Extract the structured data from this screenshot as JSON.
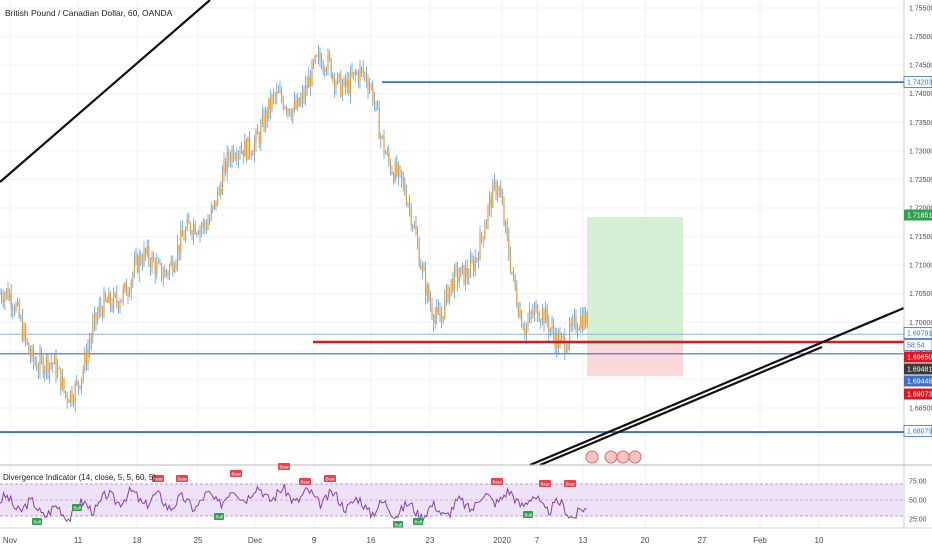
{
  "header": {
    "symbol_title": "British Pound / Canadian Dollar, 60, OANDA",
    "indicator_title": "Divergence Indicator (14, close, 5, 5, 60, 5)"
  },
  "colors": {
    "candle": "#e0a040",
    "wick": "#4f8fd8",
    "level_blue": "#3a70c8",
    "support_red": "#e0151f",
    "trend_black": "#111111",
    "target_green": "#cdeccd",
    "stop_red": "#fbd2d2",
    "rsi_line": "#8a3fb0",
    "rsi_band": "#eee3f6",
    "bear_tag": "#e8424a",
    "bull_tag": "#2e9e4f"
  },
  "chart_data": [
    {
      "type": "line",
      "title": "British Pound / Canadian Dollar, 60, OANDA",
      "ylim": [
        1.6832,
        1.7565
      ],
      "y_ticks": [
        "1.75500",
        "1.75000",
        "1.74500",
        "1.74000",
        "1.73500",
        "1.73000",
        "1.72500",
        "1.72000",
        "1.71500",
        "1.71000",
        "1.70500",
        "1.70000",
        "1.69500",
        "1.69000",
        "1.68500"
      ],
      "x_ticks": [
        "Nov",
        "11",
        "18",
        "25",
        "Dec",
        "9",
        "16",
        "23",
        "2020",
        "7",
        "13",
        "20",
        "27",
        "Feb",
        "10"
      ],
      "series": [
        {
          "x": [
            "Nov",
            "11",
            "18",
            "25",
            "Dec",
            "9",
            "16",
            "23",
            "2020",
            "7",
            "13"
          ],
          "values": [
            1.705,
            1.687,
            1.707,
            1.713,
            1.733,
            1.745,
            1.74,
            1.7,
            1.722,
            1.7,
            1.698
          ]
        }
      ],
      "levels": [
        {
          "label": "1.74203",
          "value": 1.74203,
          "color": "#3a70c8"
        },
        {
          "label": "1.71851",
          "value": 1.71851,
          "color": "#2e9e4f"
        },
        {
          "label": "1.69791",
          "value": 1.69791,
          "color": "#3a70c8"
        },
        {
          "label": "58:54",
          "value": 1.69705,
          "color": "#3a70c8"
        },
        {
          "label": "1.69650",
          "value": 1.6965,
          "color": "#e0151f"
        },
        {
          "label": "1.69481",
          "value": 1.69481,
          "color": "#3a3a3a"
        },
        {
          "label": "1.69448",
          "value": 1.69448,
          "color": "#3a70c8"
        },
        {
          "label": "1.69073",
          "value": 1.69073,
          "color": "#e0151f"
        },
        {
          "label": "1.68079",
          "value": 1.68079,
          "color": "#3a70c8"
        }
      ],
      "position": {
        "entry": 1.69705,
        "target": 1.71851,
        "stop": 1.69073
      }
    },
    {
      "type": "line",
      "title": "Divergence Indicator (14, close, 5, 5, 60, 5)",
      "ylim": [
        20,
        82
      ],
      "y_ticks": [
        "75.00",
        "50.00",
        "25.00"
      ],
      "band": [
        30,
        70
      ],
      "series": [
        {
          "x": [
            "Nov",
            "11",
            "18",
            "25",
            "Dec",
            "9",
            "16",
            "23",
            "2020",
            "7",
            "13"
          ],
          "values": [
            48,
            32,
            55,
            45,
            60,
            52,
            40,
            35,
            55,
            50,
            30
          ]
        }
      ],
      "signals": [
        "Bull",
        "Bear"
      ]
    }
  ]
}
